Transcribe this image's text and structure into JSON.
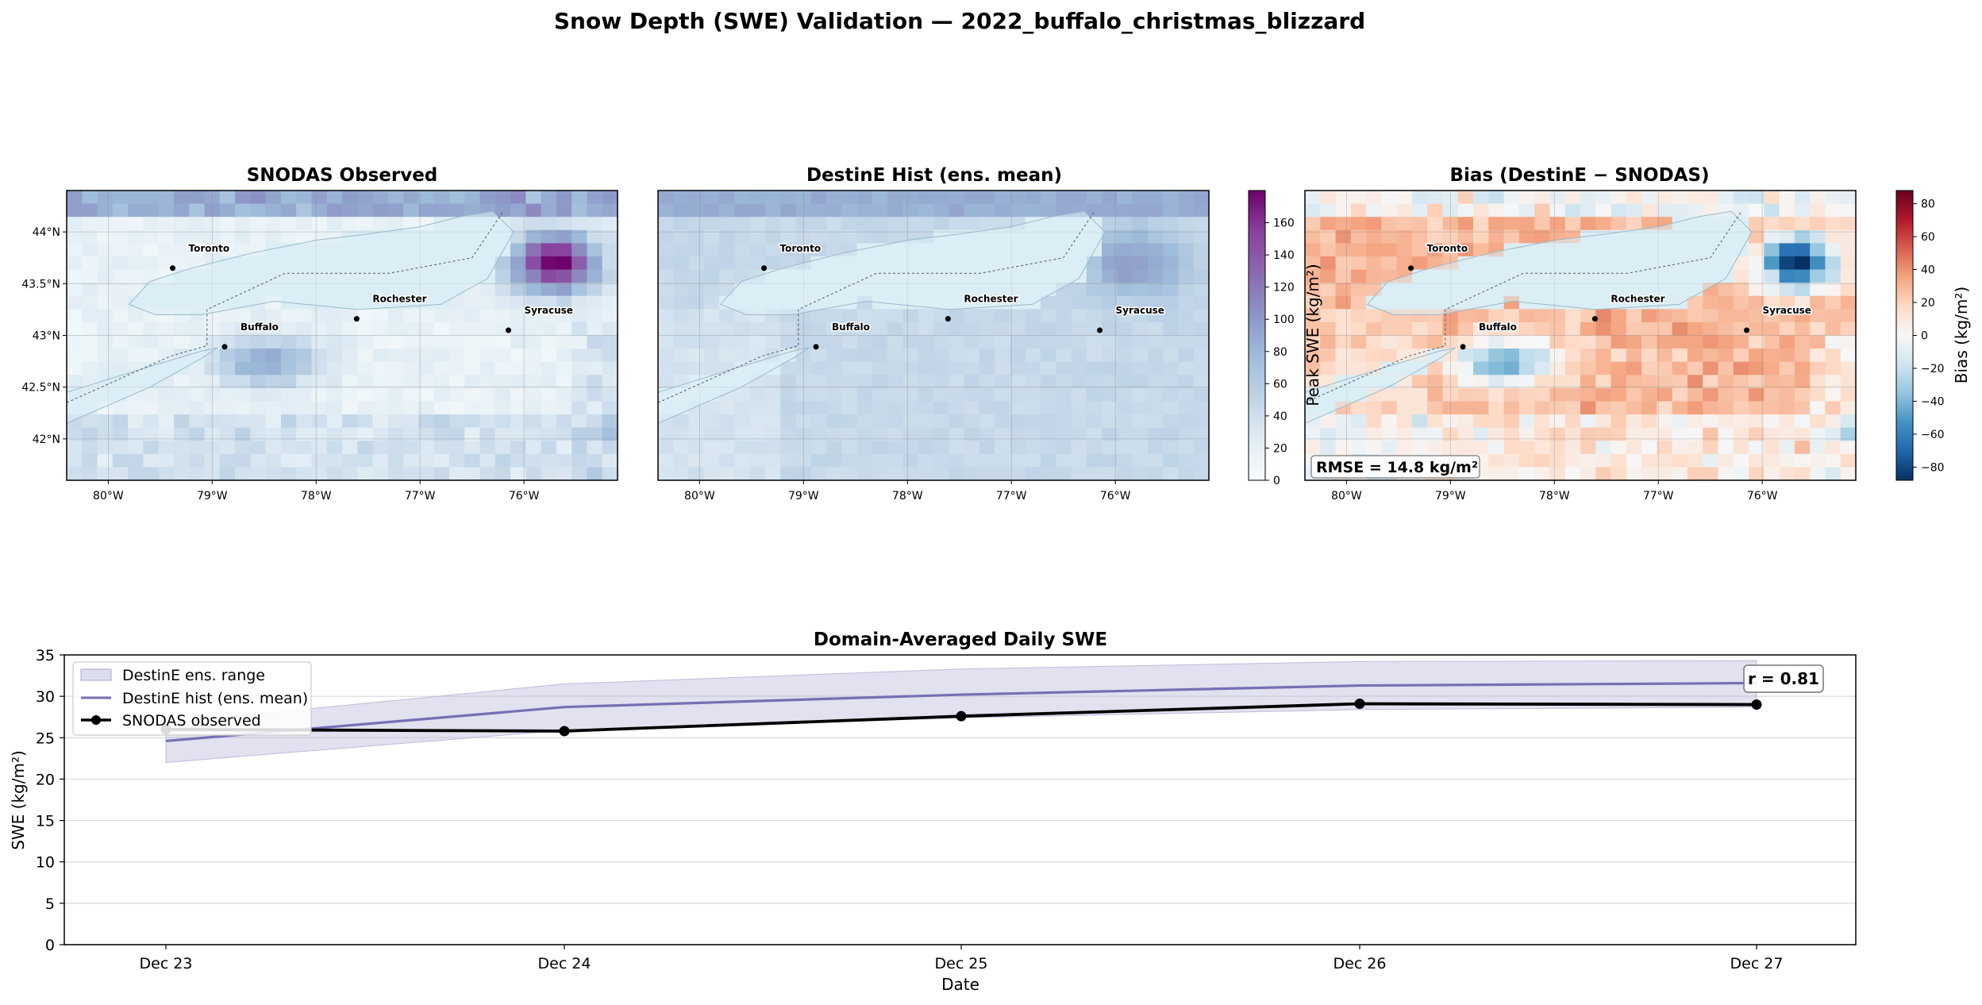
{
  "figure": {
    "title": "Snow Depth (SWE) Validation — 2022_buffalo_christmas_blizzard"
  },
  "maps": {
    "panels": [
      {
        "title": "SNODAS Observed",
        "field": "snodas"
      },
      {
        "title": "DestinE Hist (ens. mean)",
        "field": "destine"
      },
      {
        "title": "Bias (DestinE − SNODAS)",
        "field": "bias"
      }
    ],
    "lon_ticks": [
      "80°W",
      "79°W",
      "78°W",
      "77°W",
      "76°W"
    ],
    "lat_ticks": [
      "44°N",
      "43.5°N",
      "43°N",
      "42.5°N",
      "42°N"
    ],
    "extent": {
      "lon": [
        -80.4,
        -75.1
      ],
      "lat": [
        41.6,
        44.4
      ]
    },
    "cities": [
      {
        "name": "Toronto",
        "lon": -79.38,
        "lat": 43.65
      },
      {
        "name": "Buffalo",
        "lon": -78.88,
        "lat": 42.89
      },
      {
        "name": "Rochester",
        "lon": -77.61,
        "lat": 43.16
      },
      {
        "name": "Syracuse",
        "lon": -76.15,
        "lat": 43.05
      }
    ],
    "swe_colorbar": {
      "label": "Peak SWE (kg/m²)",
      "ticks": [
        "0",
        "20",
        "40",
        "60",
        "80",
        "100",
        "120",
        "140",
        "160"
      ],
      "range": [
        0,
        180
      ],
      "colormap": "BuPu"
    },
    "bias_colorbar": {
      "label": "Bias (kg/m²)",
      "ticks": [
        "80",
        "60",
        "40",
        "20",
        "0",
        "−20",
        "−40",
        "−60",
        "−80"
      ],
      "range": [
        -88,
        88
      ],
      "colormap": "RdBu_r"
    },
    "rmse_label": "RMSE = 14.8 kg/m²",
    "colors": {
      "lake": "#dbeef5",
      "land_low": "#f4f8fb",
      "purple_high": "#6e0b6c"
    }
  },
  "timeseries": {
    "title": "Domain-Averaged Daily SWE",
    "xlabel": "Date",
    "ylabel": "SWE (kg/m²)",
    "corr_label": "r = 0.81",
    "legend": [
      "DestinE ens. range",
      "DestinE hist (ens. mean)",
      "SNODAS observed"
    ]
  },
  "chart_data": {
    "type": "line",
    "title": "Domain-Averaged Daily SWE",
    "xlabel": "Date",
    "ylabel": "SWE (kg/m²)",
    "categories": [
      "Dec 23",
      "Dec 24",
      "Dec 25",
      "Dec 26",
      "Dec 27"
    ],
    "ylim": [
      0,
      35
    ],
    "yticks": [
      "0",
      "5",
      "10",
      "15",
      "20",
      "25",
      "30",
      "35"
    ],
    "series": [
      {
        "name": "DestinE hist (ens. mean)",
        "values": [
          24.6,
          28.7,
          30.2,
          31.3,
          31.6
        ],
        "color": "#7570b3"
      },
      {
        "name": "SNODAS observed",
        "values": [
          26.0,
          25.8,
          27.6,
          29.1,
          29.0
        ],
        "color": "#000000"
      }
    ],
    "band": {
      "name": "DestinE ens. range",
      "lower": [
        22.0,
        25.9,
        27.4,
        28.4,
        28.7
      ],
      "upper": [
        26.8,
        31.5,
        33.3,
        34.2,
        34.3
      ],
      "color": "#bcbddc"
    },
    "grid": "horizontal",
    "legend_position": "upper-left",
    "annotation": "r = 0.81"
  }
}
